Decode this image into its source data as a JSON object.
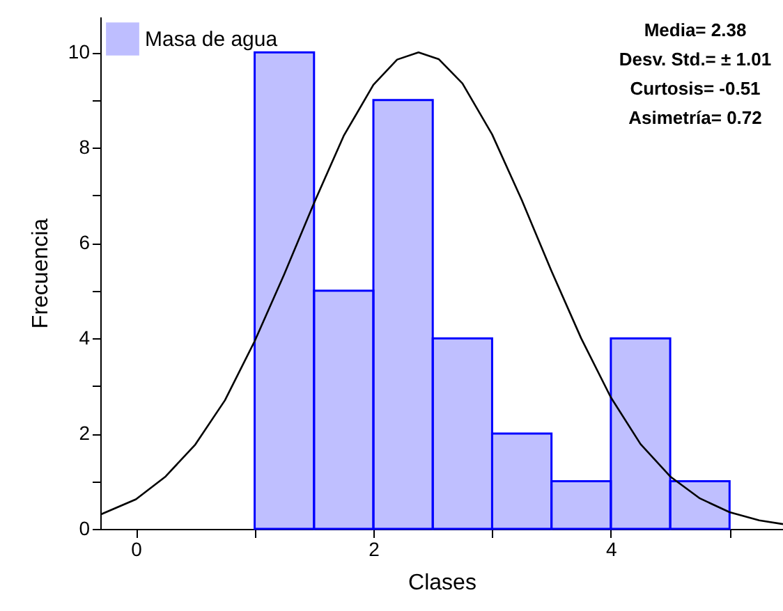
{
  "chart_data": {
    "type": "histogram",
    "xlabel": "Clases",
    "ylabel": "Frecuencia",
    "series": [
      {
        "name": "Masa de agua",
        "color": "#0000ff",
        "bins": [
          1,
          1.5,
          2,
          2.5,
          3,
          3.5,
          4,
          4.5,
          5
        ],
        "values": [
          10,
          5,
          9,
          4,
          2,
          1,
          4,
          1
        ]
      },
      {
        "type": "line",
        "color": "#000000",
        "x": [
          -0.3,
          0,
          0.25,
          0.5,
          0.75,
          1,
          1.25,
          1.5,
          1.75,
          2,
          2.2,
          2.38,
          2.55,
          2.75,
          3,
          3.25,
          3.5,
          3.75,
          4,
          4.25,
          4.5,
          4.75,
          5,
          5.25,
          5.45
        ],
        "values": [
          0.3,
          0.62,
          1.1,
          1.77,
          2.7,
          3.94,
          5.35,
          6.84,
          8.25,
          9.32,
          9.85,
          10,
          9.86,
          9.35,
          8.28,
          6.9,
          5.41,
          4.0,
          2.76,
          1.78,
          1.1,
          0.64,
          0.35,
          0.18,
          0.1
        ]
      }
    ],
    "xlim": [
      -0.3,
      5.45
    ],
    "xticks": [
      0,
      {
        "value": 1,
        "label": null
      },
      2,
      {
        "value": 3,
        "label": null
      },
      4,
      {
        "value": 5,
        "label": null
      }
    ],
    "ylim": [
      0,
      10.75
    ],
    "yticks": [
      0,
      {
        "value": 1,
        "label": null
      },
      2,
      {
        "value": 3,
        "label": null
      },
      4,
      {
        "value": 5,
        "label": null
      },
      6,
      {
        "value": 7,
        "label": null
      },
      8,
      {
        "value": 9,
        "label": null
      },
      10
    ],
    "annotations": [
      "Media= 2.38",
      "Desv. Std.= ± 1.01",
      "Curtosis= -0.51",
      "Asimetría= 0.72"
    ],
    "legend": "top left",
    "grid": false
  }
}
